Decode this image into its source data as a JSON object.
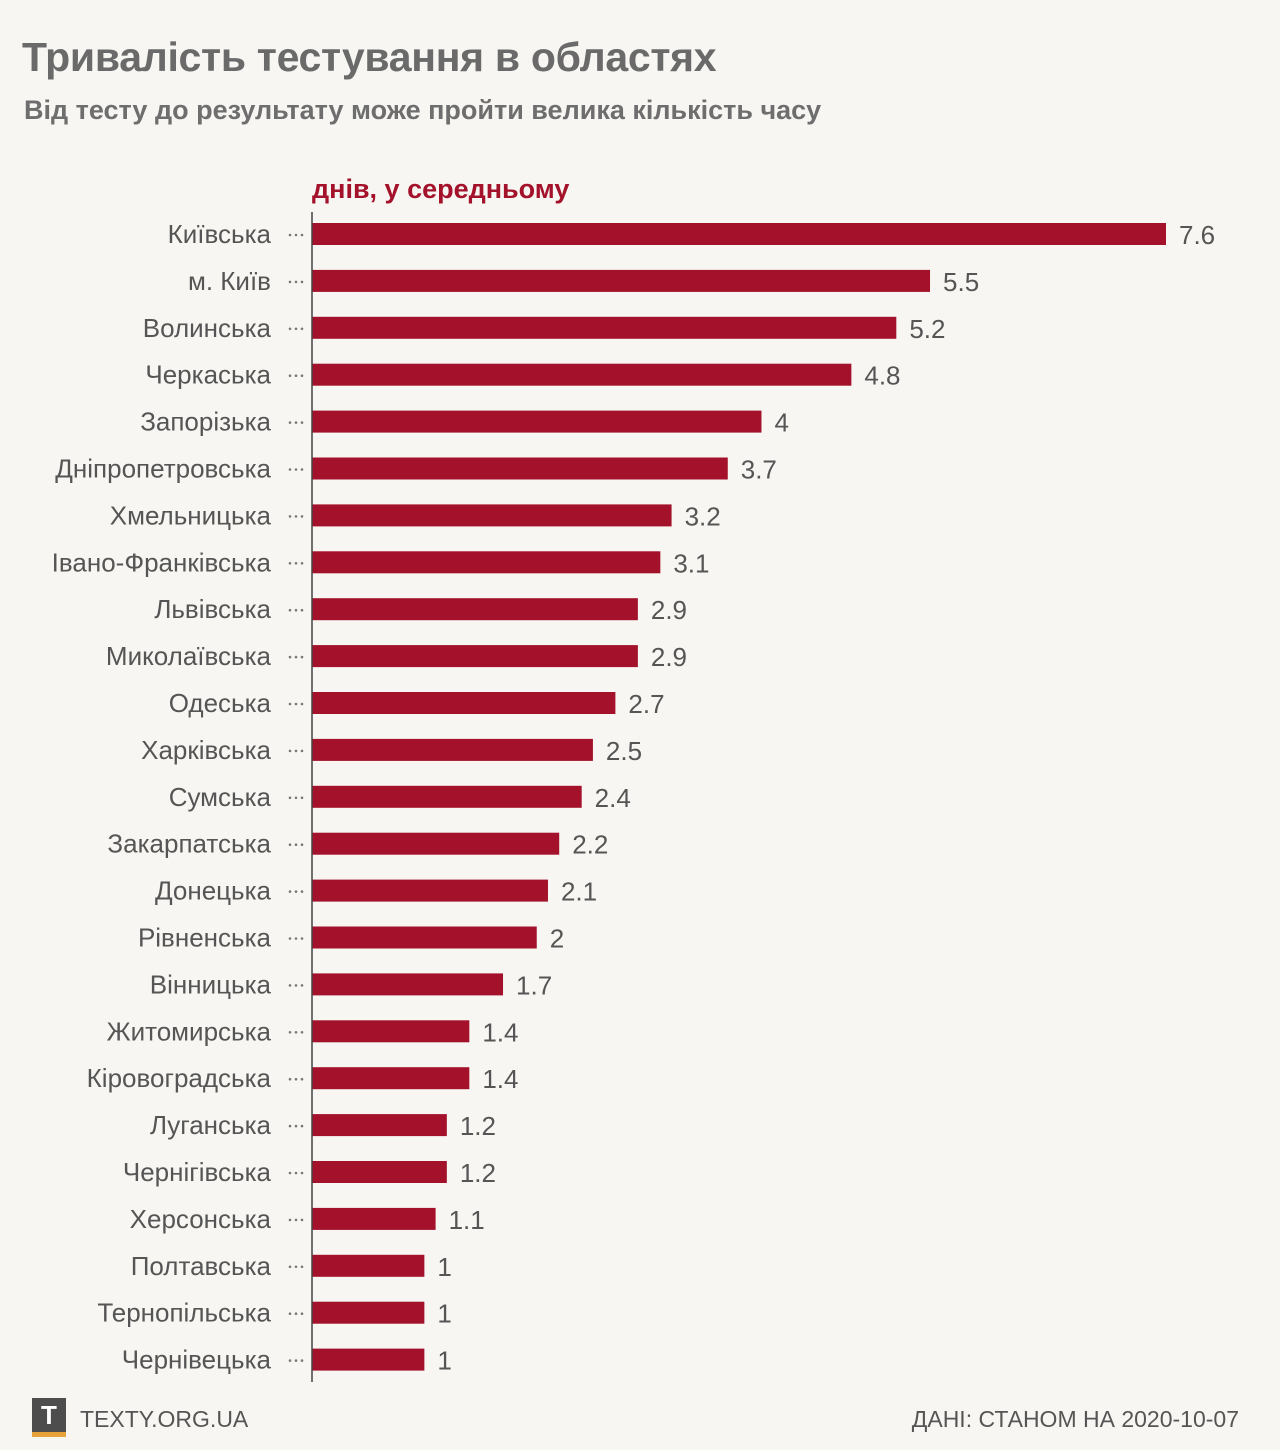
{
  "title": "Тривалість тестування в областях",
  "subtitle": "Від тесту до результату може пройти велика кількість часу",
  "footer": {
    "logo_letter": "T",
    "site": "TEXTY.ORG.UA",
    "source": "ДАНІ: СТАНОМ НА 2020-10-07"
  },
  "colors": {
    "bar": "#a3122a",
    "unit_label": "#a3122a",
    "text": "#6a6a6a",
    "background": "#f7f6f2",
    "logo_accent": "#e8a23a"
  },
  "chart_data": {
    "type": "bar",
    "orientation": "horizontal",
    "unit_label": "днів, у середньому",
    "xlim": [
      0,
      7.6
    ],
    "categories": [
      "Київська",
      "м. Київ",
      "Волинська",
      "Черкаська",
      "Запорізька",
      "Дніпропетровська",
      "Хмельницька",
      "Івано-Франківська",
      "Львівська",
      "Миколаївська",
      "Одеська",
      "Харківська",
      "Сумська",
      "Закарпатська",
      "Донецька",
      "Рівненська",
      "Вінницька",
      "Житомирська",
      "Кіровоградська",
      "Луганська",
      "Чернігівська",
      "Херсонська",
      "Полтавська",
      "Тернопільська",
      "Чернівецька"
    ],
    "values": [
      7.6,
      5.5,
      5.2,
      4.8,
      4,
      3.7,
      3.2,
      3.1,
      2.9,
      2.9,
      2.7,
      2.5,
      2.4,
      2.2,
      2.1,
      2,
      1.7,
      1.4,
      1.4,
      1.2,
      1.2,
      1.1,
      1,
      1,
      1
    ],
    "value_labels": [
      "7.6",
      "5.5",
      "5.2",
      "4.8",
      "4",
      "3.7",
      "3.2",
      "3.1",
      "2.9",
      "2.9",
      "2.7",
      "2.5",
      "2.4",
      "2.2",
      "2.1",
      "2",
      "1.7",
      "1.4",
      "1.4",
      "1.2",
      "1.2",
      "1.1",
      "1",
      "1",
      "1"
    ],
    "grid": false,
    "legend": "none"
  }
}
